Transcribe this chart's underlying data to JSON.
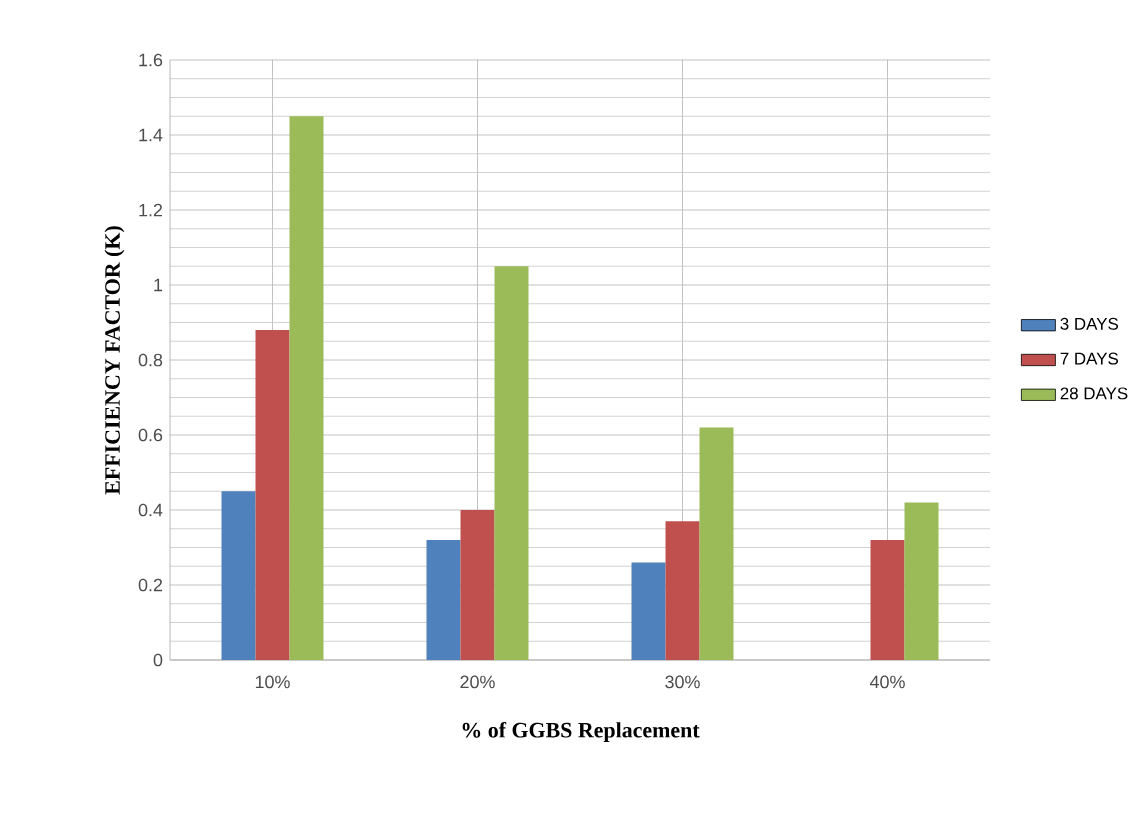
{
  "chart_data": {
    "type": "bar",
    "xlabel": "% of GGBS Replacement",
    "ylabel": "EFFICIENCY FACTOR (K)",
    "categories": [
      "10%",
      "20%",
      "30%",
      "40%"
    ],
    "series": [
      {
        "name": "3 DAYS",
        "color": "#4f81bd",
        "values": [
          0.45,
          0.32,
          0.26,
          null
        ]
      },
      {
        "name": "7 DAYS",
        "color": "#c0504d",
        "values": [
          0.88,
          0.4,
          0.37,
          0.32
        ]
      },
      {
        "name": "28 DAYS",
        "color": "#9bbb59",
        "values": [
          1.45,
          1.05,
          0.62,
          0.42
        ]
      }
    ],
    "ylim": [
      0,
      1.6
    ],
    "yticks": [
      0,
      0.2,
      0.4,
      0.6,
      0.8,
      1,
      1.2,
      1.4,
      1.6
    ],
    "grid": true,
    "legend": "right"
  }
}
